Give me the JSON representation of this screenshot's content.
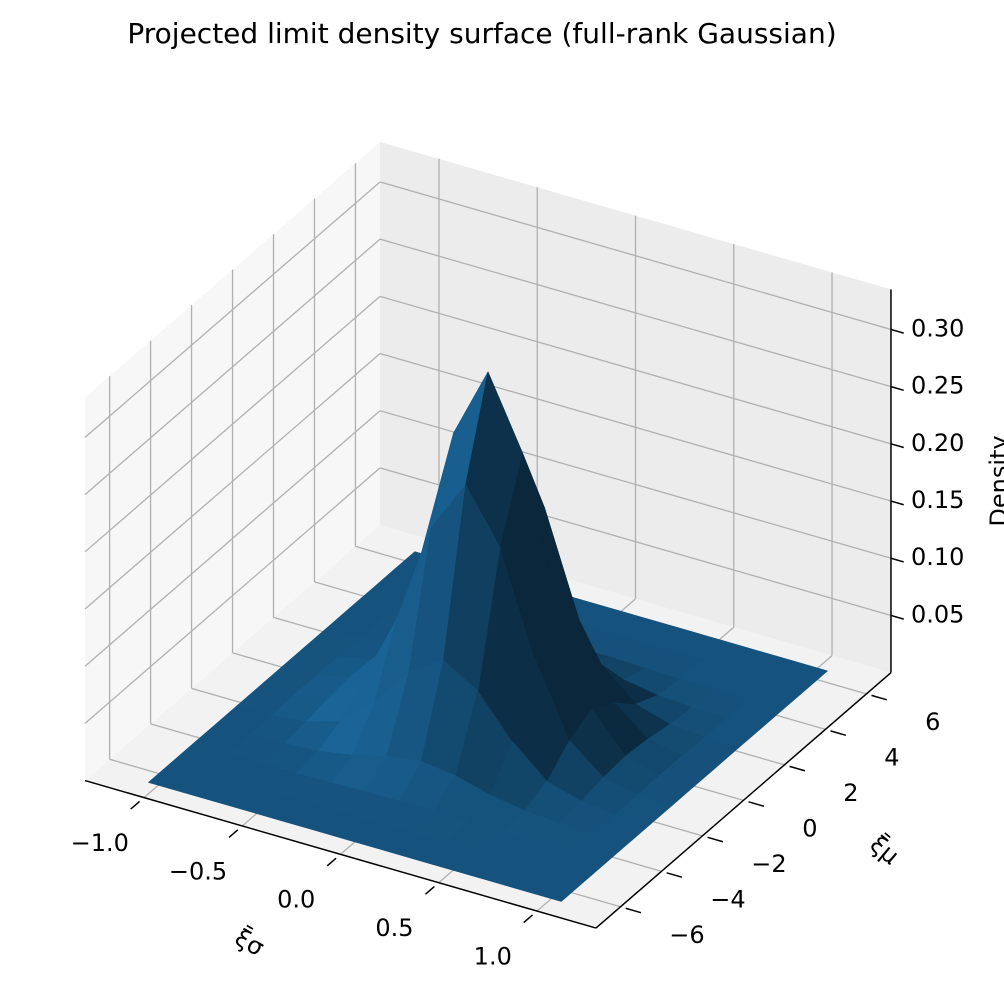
{
  "chart_data": {
    "type": "surface",
    "title": "Projected limit density surface (full-rank Gaussian)",
    "xlabel": "ξ̄σ",
    "ylabel": "ξ̄μ",
    "zlabel": "Density",
    "color": "#1f77b4",
    "x": [
      -1.05,
      -0.875,
      -0.7,
      -0.525,
      -0.35,
      -0.175,
      0,
      0.175,
      0.35,
      0.525,
      0.7,
      0.875,
      1.05
    ],
    "y": [
      -6.5,
      -5.417,
      -4.333,
      -3.25,
      -2.167,
      -1.083,
      0,
      1.083,
      2.167,
      3.25,
      4.333,
      5.417,
      6.5
    ],
    "z": [
      [
        0,
        0,
        0,
        0,
        0,
        0,
        0,
        0,
        0,
        0,
        0,
        0,
        0
      ],
      [
        0,
        0,
        0,
        0,
        0,
        0.001,
        0.001,
        0.001,
        0,
        0,
        0,
        0,
        0
      ],
      [
        0,
        0,
        0,
        0.001,
        0.003,
        0.007,
        0.009,
        0.007,
        0.003,
        0.001,
        0,
        0,
        0
      ],
      [
        0,
        0,
        0,
        0.003,
        0.012,
        0.031,
        0.042,
        0.031,
        0.012,
        0.003,
        0,
        0,
        0
      ],
      [
        0,
        0,
        0.001,
        0.008,
        0.038,
        0.094,
        0.127,
        0.094,
        0.038,
        0.008,
        0.001,
        0,
        0
      ],
      [
        0,
        0,
        0.002,
        0.016,
        0.074,
        0.183,
        0.248,
        0.183,
        0.074,
        0.016,
        0.002,
        0,
        0
      ],
      [
        0,
        0,
        0.002,
        0.02,
        0.092,
        0.229,
        0.31,
        0.229,
        0.092,
        0.02,
        0.002,
        0,
        0
      ],
      [
        0,
        0,
        0.002,
        0.016,
        0.074,
        0.183,
        0.248,
        0.183,
        0.074,
        0.016,
        0.002,
        0,
        0
      ],
      [
        0,
        0,
        0.001,
        0.008,
        0.038,
        0.094,
        0.127,
        0.094,
        0.038,
        0.008,
        0.001,
        0,
        0
      ],
      [
        0,
        0,
        0,
        0.003,
        0.012,
        0.031,
        0.042,
        0.031,
        0.012,
        0.003,
        0,
        0,
        0
      ],
      [
        0,
        0,
        0,
        0.001,
        0.003,
        0.007,
        0.009,
        0.007,
        0.003,
        0.001,
        0,
        0,
        0
      ],
      [
        0,
        0,
        0,
        0,
        0,
        0.001,
        0.001,
        0.001,
        0,
        0,
        0,
        0,
        0
      ],
      [
        0,
        0,
        0,
        0,
        0,
        0,
        0,
        0,
        0,
        0,
        0,
        0,
        0
      ]
    ],
    "xlim": [
      -1.3,
      1.3
    ],
    "ylim": [
      -7.2,
      7.2
    ],
    "zlim": [
      0,
      0.335
    ],
    "xticks": [
      {
        "value": -1,
        "label": "−1.0"
      },
      {
        "value": -0.5,
        "label": "−0.5"
      },
      {
        "value": 0,
        "label": "0.0"
      },
      0.5,
      {
        "value": 1,
        "label": "1.0"
      }
    ],
    "yticks": [
      {
        "value": -6,
        "label": "−6"
      },
      {
        "value": -4,
        "label": "−4"
      },
      {
        "value": -2,
        "label": "−2"
      },
      0,
      2,
      4,
      6
    ],
    "zticks": [
      0.05,
      {
        "value": 0.1,
        "label": "0.10"
      },
      0.15,
      {
        "value": 0.2,
        "label": "0.20"
      },
      0.25,
      {
        "value": 0.3,
        "label": "0.30"
      }
    ],
    "grid": true
  }
}
